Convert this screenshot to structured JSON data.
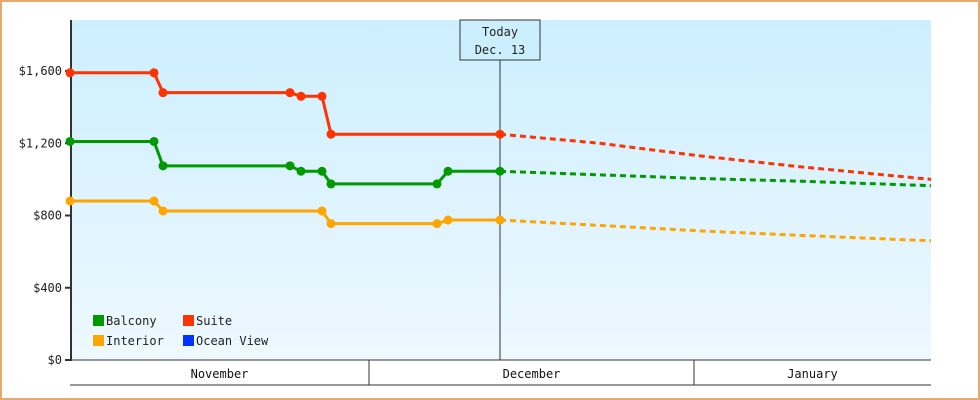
{
  "chart_data": {
    "type": "line",
    "title": "",
    "xlabel": "",
    "ylabel": "",
    "ylim": [
      0,
      1800
    ],
    "y_ticks": [
      {
        "value": 0,
        "label": "$0"
      },
      {
        "value": 400,
        "label": "$400"
      },
      {
        "value": 800,
        "label": "$800"
      },
      {
        "value": 1200,
        "label": "$1,200"
      },
      {
        "value": 1600,
        "label": "$1,600"
      }
    ],
    "x_periods": [
      {
        "label": "November",
        "x_start": 70,
        "x_end": 369
      },
      {
        "label": "December",
        "x_start": 369,
        "x_end": 694
      },
      {
        "label": "January",
        "x_start": 694,
        "x_end": 931
      }
    ],
    "today_marker": {
      "line1": "Today",
      "line2": "Dec. 13",
      "x": 500
    },
    "grid": false,
    "legend_position": "lower-left-inside",
    "legend": [
      {
        "name": "Balcony",
        "color": "#009900"
      },
      {
        "name": "Suite",
        "color": "#ff3300"
      },
      {
        "name": "Interior",
        "color": "#ffa500"
      },
      {
        "name": "Ocean View",
        "color": "#0033ff"
      }
    ],
    "series": [
      {
        "name": "Suite",
        "color": "#ff3300",
        "points": [
          [
            70,
            1590
          ],
          [
            154,
            1590
          ],
          [
            163,
            1480
          ],
          [
            290,
            1480
          ],
          [
            301,
            1460
          ],
          [
            322,
            1460
          ],
          [
            331,
            1250
          ],
          [
            500,
            1250
          ]
        ],
        "forecast": [
          [
            500,
            1250
          ],
          [
            600,
            1200
          ],
          [
            700,
            1130
          ],
          [
            800,
            1070
          ],
          [
            931,
            1000
          ]
        ]
      },
      {
        "name": "Balcony",
        "color": "#009900",
        "points": [
          [
            70,
            1210
          ],
          [
            154,
            1210
          ],
          [
            163,
            1075
          ],
          [
            290,
            1075
          ],
          [
            301,
            1045
          ],
          [
            322,
            1045
          ],
          [
            331,
            975
          ],
          [
            437,
            975
          ],
          [
            448,
            1045
          ],
          [
            500,
            1045
          ]
        ],
        "forecast": [
          [
            500,
            1045
          ],
          [
            600,
            1025
          ],
          [
            700,
            1005
          ],
          [
            800,
            990
          ],
          [
            931,
            965
          ]
        ]
      },
      {
        "name": "Interior",
        "color": "#ffa500",
        "points": [
          [
            70,
            880
          ],
          [
            154,
            880
          ],
          [
            163,
            825
          ],
          [
            322,
            825
          ],
          [
            331,
            755
          ],
          [
            437,
            755
          ],
          [
            448,
            775
          ],
          [
            500,
            775
          ]
        ],
        "forecast": [
          [
            500,
            775
          ],
          [
            600,
            745
          ],
          [
            700,
            715
          ],
          [
            800,
            690
          ],
          [
            931,
            660
          ]
        ]
      },
      {
        "name": "Ocean View",
        "color": "#0033ff",
        "points": [],
        "forecast": []
      }
    ]
  }
}
